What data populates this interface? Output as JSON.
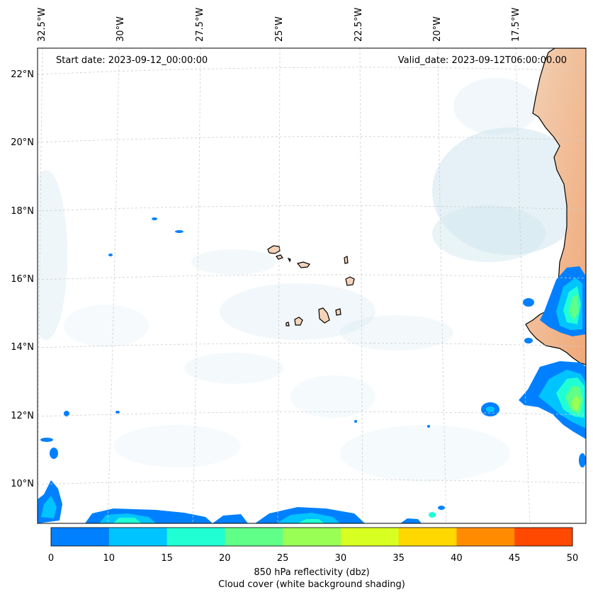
{
  "map": {
    "start_date": "Start date: 2023-09-12_00:00:00",
    "valid_date": "Valid_date: 2023-09-12T06:00:00.00",
    "lon_labels": [
      "32.5°W",
      "30°W",
      "27.5°W",
      "25°W",
      "22.5°W",
      "20°W",
      "17.5°W"
    ],
    "lat_labels": [
      "22°N",
      "20°N",
      "18°N",
      "16°N",
      "14°N",
      "12°N",
      "10°N"
    ],
    "colorbar": {
      "ticks": [
        "0",
        "10",
        "15",
        "20",
        "25",
        "30",
        "35",
        "40",
        "45",
        "50"
      ],
      "colors": [
        "#0080ff",
        "#00c4ff",
        "#20ffd4",
        "#60ff88",
        "#99ff55",
        "#d8ff22",
        "#ffd800",
        "#ff8c00",
        "#ff4800"
      ],
      "label": "850 hPa reflectivity (dbz)",
      "sublabel": "Cloud cover (white background shading)"
    },
    "colors": {
      "cloud": "#cfe6ee",
      "land": "#f4c8a4",
      "coast": "#000000",
      "grid": "#cccccc"
    }
  }
}
